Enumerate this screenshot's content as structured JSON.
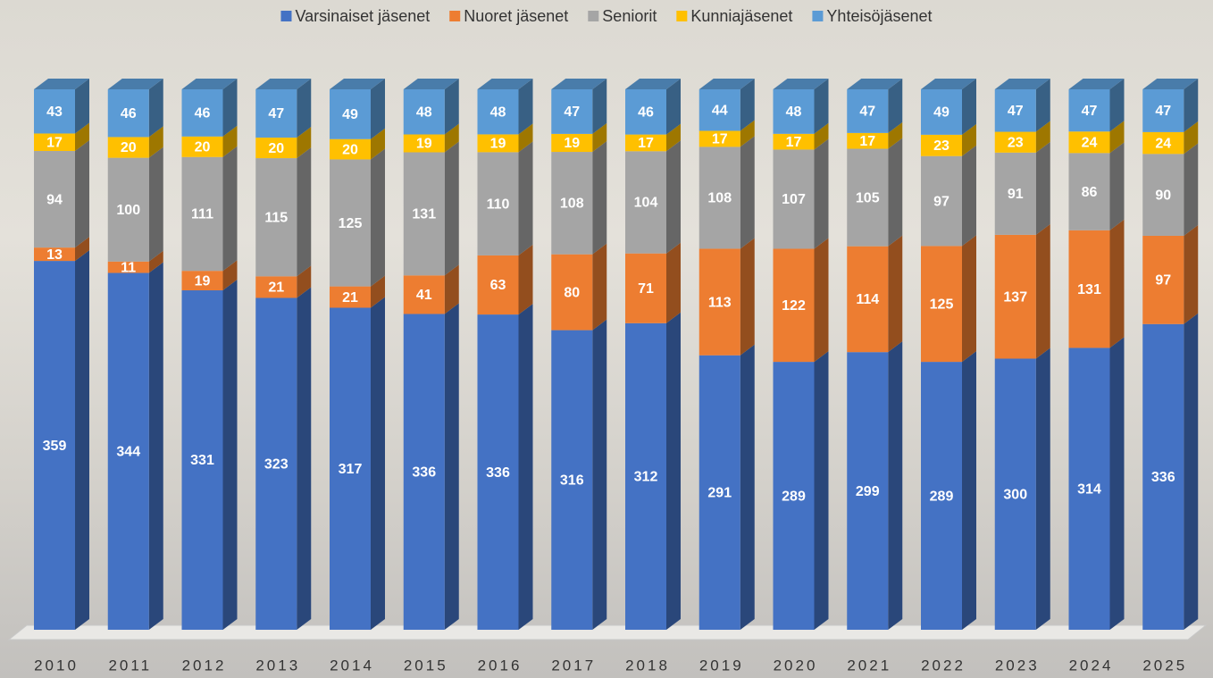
{
  "chart_data": {
    "type": "bar",
    "stacking": "percent",
    "categories": [
      "2010",
      "2011",
      "2012",
      "2013",
      "2014",
      "2015",
      "2016",
      "2017",
      "2018",
      "2019",
      "2020",
      "2021",
      "2022",
      "2023",
      "2024",
      "2025"
    ],
    "series": [
      {
        "name": "Varsinaiset jäsenet",
        "color": "#4472c4",
        "values": [
          359,
          344,
          331,
          323,
          317,
          336,
          336,
          316,
          312,
          291,
          289,
          299,
          289,
          300,
          314,
          336
        ]
      },
      {
        "name": "Nuoret jäsenet",
        "color": "#ed7d31",
        "values": [
          13,
          11,
          19,
          21,
          21,
          41,
          63,
          80,
          71,
          113,
          122,
          114,
          125,
          137,
          131,
          97
        ]
      },
      {
        "name": "Seniorit",
        "color": "#a5a5a5",
        "values": [
          94,
          100,
          111,
          115,
          125,
          131,
          110,
          108,
          104,
          108,
          107,
          105,
          97,
          91,
          86,
          90
        ]
      },
      {
        "name": "Kunniajäsenet",
        "color": "#ffc000",
        "values": [
          17,
          20,
          20,
          20,
          20,
          19,
          19,
          19,
          17,
          17,
          17,
          17,
          23,
          23,
          24,
          24
        ]
      },
      {
        "name": "Yhteisöjäsenet",
        "color": "#5b9bd5",
        "values": [
          43,
          46,
          46,
          47,
          49,
          48,
          48,
          47,
          46,
          44,
          48,
          47,
          49,
          47,
          47,
          47
        ]
      }
    ],
    "legend": "top"
  }
}
